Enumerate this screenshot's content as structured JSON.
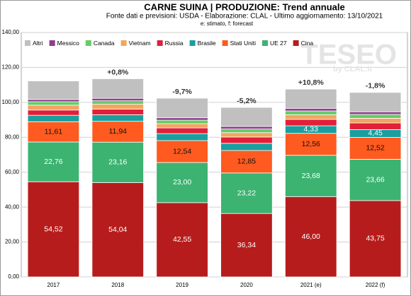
{
  "chart_data": {
    "type": "stacked_bar",
    "title": "CARNE SUINA | PRODUZIONE: Trend annuale",
    "subtitle": "Fonte dati e previsioni: USDA - Elaborazione: CLAL - Ultimo aggiornamento: 13/10/2021",
    "note": "e: stimato, f: forecast",
    "watermark": "TESEO",
    "watermark_sub": "by CLAL.it",
    "categories": [
      "2017",
      "2018",
      "2019",
      "2020",
      "2021 (e)",
      "2022 (f)"
    ],
    "change_labels": [
      null,
      "+0,8%",
      "-9,7%",
      "-5,2%",
      "+10,8%",
      "-1,8%"
    ],
    "ylim": [
      0,
      140
    ],
    "yticks": [
      {
        "value": 0,
        "label": "0,00"
      },
      {
        "value": 20,
        "label": "20,00"
      },
      {
        "value": 40,
        "label": "40,00"
      },
      {
        "value": 60,
        "label": "60,00"
      },
      {
        "value": 80,
        "label": "80,00"
      },
      {
        "value": 100,
        "label": "100,00"
      },
      {
        "value": 120,
        "label": "120,00"
      },
      {
        "value": 140,
        "label": "140,00"
      }
    ],
    "grid": true,
    "series": [
      {
        "name": "Altri",
        "color": "#c0c0c0",
        "values": [
          10.6,
          11.2,
          11.2,
          10.9,
          11.0,
          11.1
        ]
      },
      {
        "name": "Messico",
        "color": "#8e3c8e",
        "values": [
          1.3,
          1.4,
          1.4,
          1.45,
          1.5,
          1.5
        ]
      },
      {
        "name": "Canada",
        "color": "#66cc66",
        "values": [
          1.95,
          2.0,
          2.0,
          2.1,
          2.2,
          2.2
        ]
      },
      {
        "name": "Vietnam",
        "color": "#f4a460",
        "values": [
          2.8,
          2.8,
          2.4,
          2.5,
          2.6,
          2.7
        ]
      },
      {
        "name": "Russia",
        "color": "#e0203a",
        "values": [
          3.0,
          3.2,
          3.3,
          3.6,
          3.7,
          3.8
        ]
      },
      {
        "name": "Brasile",
        "color": "#1a9e9e",
        "values": [
          3.7,
          3.76,
          3.98,
          4.13,
          4.33,
          4.45
        ],
        "value_labels": [
          null,
          null,
          null,
          null,
          "4,33",
          "4,45"
        ]
      },
      {
        "name": "Stati Uniti",
        "color": "#ff5a1f",
        "values": [
          11.61,
          11.94,
          12.54,
          12.85,
          12.56,
          12.52
        ],
        "value_labels": [
          "11,61",
          "11,94",
          "12,54",
          "12,85",
          "12,56",
          "12,52"
        ]
      },
      {
        "name": "UE 27",
        "color": "#3cb371",
        "values": [
          22.76,
          23.16,
          23.0,
          23.22,
          23.68,
          23.66
        ],
        "value_labels": [
          "22,76",
          "23,16",
          "23,00",
          "23,22",
          "23,68",
          "23,66"
        ]
      },
      {
        "name": "Cina",
        "color": "#b71c1c",
        "values": [
          54.52,
          54.04,
          42.55,
          36.34,
          46.0,
          43.75
        ],
        "value_labels": [
          "54,52",
          "54,04",
          "42,55",
          "36,34",
          "46,00",
          "43,75"
        ]
      }
    ]
  }
}
